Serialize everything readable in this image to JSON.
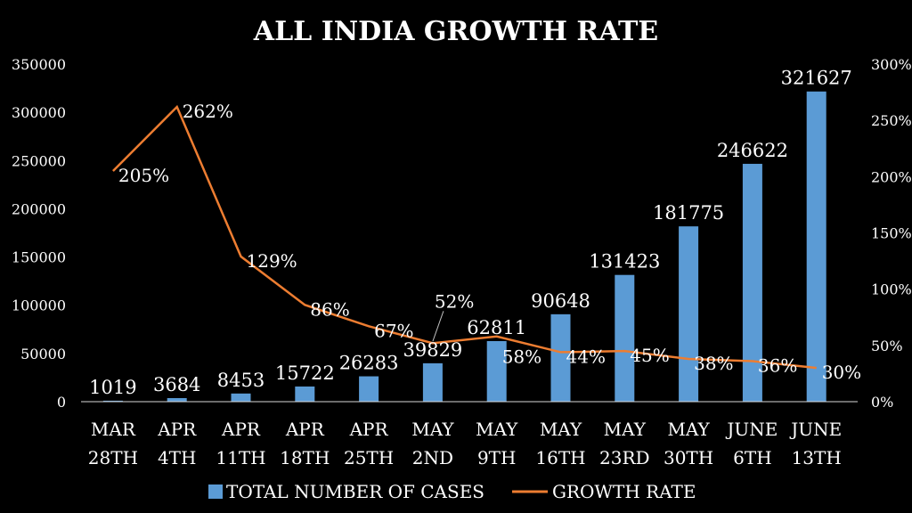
{
  "chart_data": {
    "type": "bar+line",
    "title": "ALL INDIA GROWTH RATE",
    "categories": [
      [
        "MAR",
        "28TH"
      ],
      [
        "APR",
        "4TH"
      ],
      [
        "APR",
        "11TH"
      ],
      [
        "APR",
        "18TH"
      ],
      [
        "APR",
        "25TH"
      ],
      [
        "MAY",
        "2ND"
      ],
      [
        "MAY",
        "9TH"
      ],
      [
        "MAY",
        "16TH"
      ],
      [
        "MAY",
        "23RD"
      ],
      [
        "MAY",
        "30TH"
      ],
      [
        "JUNE",
        "6TH"
      ],
      [
        "JUNE",
        "13TH"
      ]
    ],
    "series": [
      {
        "name": "TOTAL NUMBER OF CASES",
        "type": "bar",
        "axis": "left",
        "color": "#5B9BD5",
        "values": [
          1019,
          3684,
          8453,
          15722,
          26283,
          39829,
          62811,
          90648,
          131423,
          181775,
          246622,
          321627
        ]
      },
      {
        "name": "GROWTH RATE",
        "type": "line",
        "axis": "right",
        "color": "#ED7D31",
        "values": [
          205,
          262,
          129,
          86,
          67,
          52,
          58,
          44,
          45,
          38,
          36,
          30
        ]
      }
    ],
    "left_axis": {
      "range": [
        0,
        350000
      ],
      "step": 50000,
      "ticks": [
        "0",
        "50000",
        "100000",
        "150000",
        "200000",
        "250000",
        "300000",
        "350000"
      ]
    },
    "right_axis": {
      "range": [
        0,
        300
      ],
      "step": 50,
      "ticks": [
        "0%",
        "50%",
        "100%",
        "150%",
        "200%",
        "250%",
        "300%"
      ]
    },
    "legend": "bottom",
    "grid": false
  }
}
